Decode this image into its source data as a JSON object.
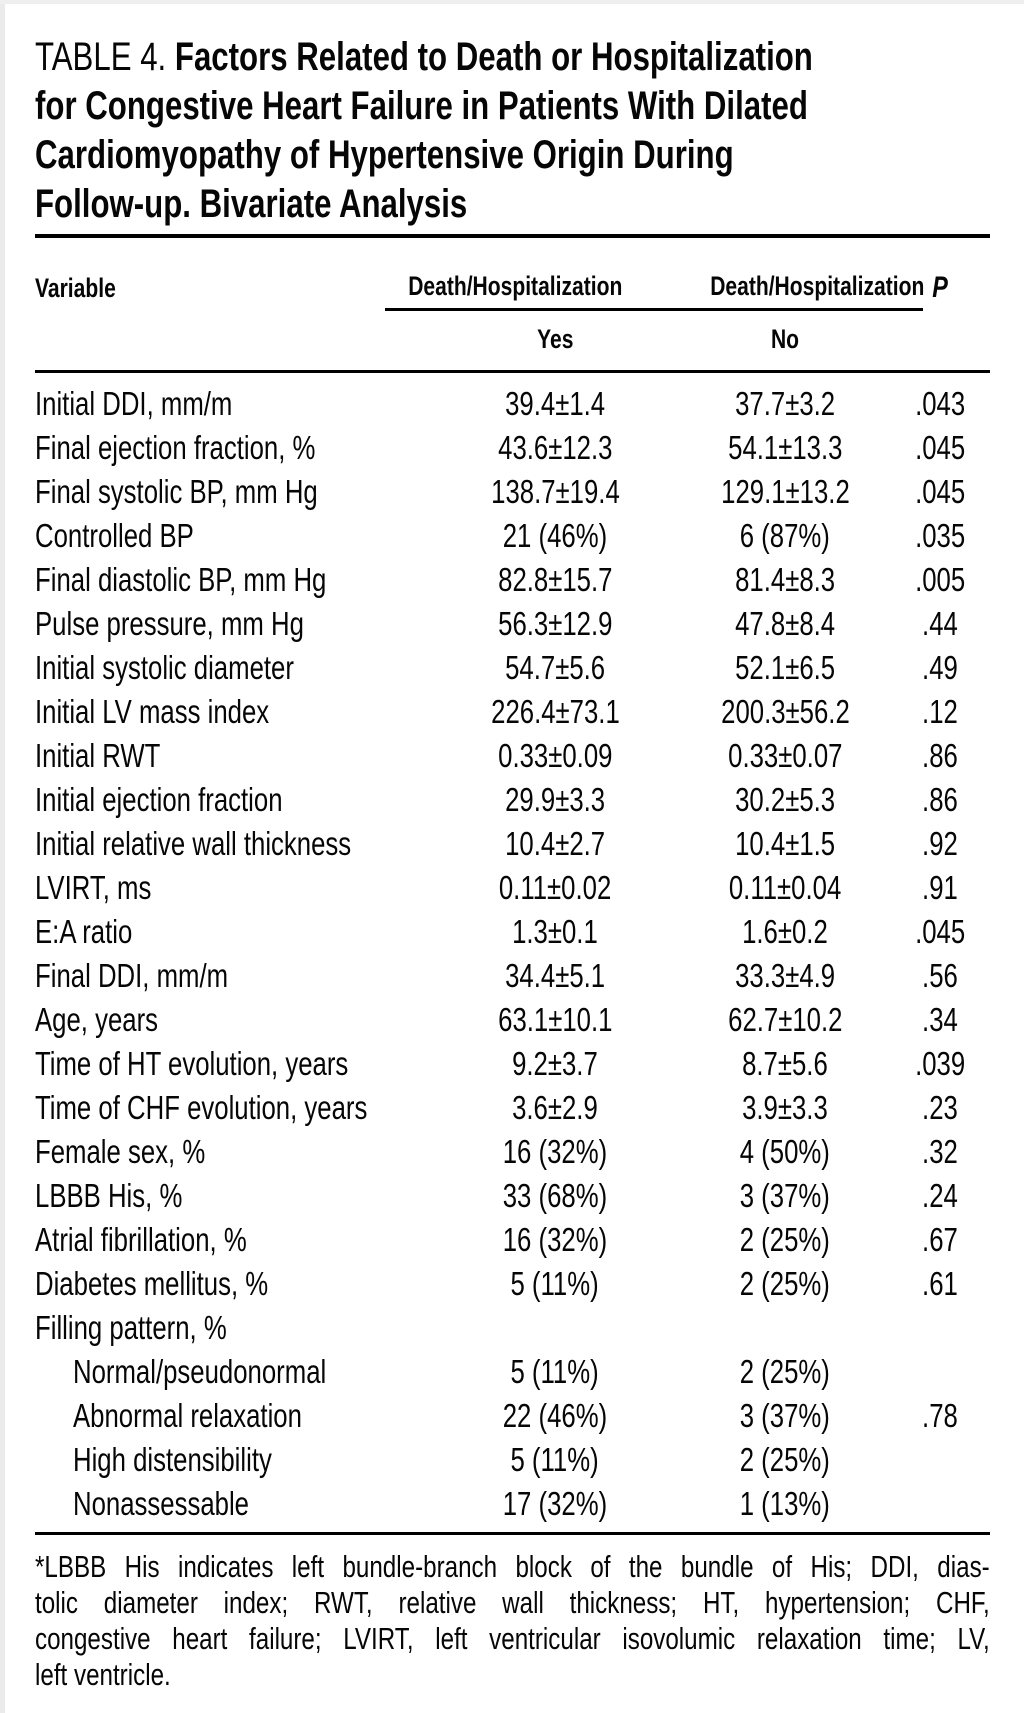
{
  "page": {
    "background": "#ffffff",
    "text_color": "#060606",
    "rule_color": "#000000"
  },
  "title": {
    "prefix": "TABLE 4.",
    "lines": [
      "Factors Related to Death or Hospitalization",
      "for Congestive Heart Failure in Patients With Dilated",
      "Cardiomyopathy of Hypertensive Origin During",
      "Follow-up. Bivariate Analysis"
    ]
  },
  "table": {
    "header": {
      "variable": "Variable",
      "group_yes": "Death/Hospitalization",
      "group_no": "Death/Hospitalization",
      "sub_yes": "Yes",
      "sub_no": "No",
      "p": "P"
    },
    "rows": [
      {
        "variable": "Initial DDI, mm/m",
        "yes": "39.4±1.4",
        "no": "37.7±3.2",
        "p": ".043",
        "indent": false
      },
      {
        "variable": "Final ejection fraction, %",
        "yes": "43.6±12.3",
        "no": "54.1±13.3",
        "p": ".045",
        "indent": false
      },
      {
        "variable": "Final systolic BP, mm Hg",
        "yes": "138.7±19.4",
        "no": "129.1±13.2",
        "p": ".045",
        "indent": false
      },
      {
        "variable": "Controlled BP",
        "yes": "21 (46%)",
        "no": "6 (87%)",
        "p": ".035",
        "indent": false
      },
      {
        "variable": "Final diastolic BP, mm Hg",
        "yes": "82.8±15.7",
        "no": "81.4±8.3",
        "p": ".005",
        "indent": false
      },
      {
        "variable": "Pulse pressure, mm Hg",
        "yes": "56.3±12.9",
        "no": "47.8±8.4",
        "p": ".44",
        "indent": false
      },
      {
        "variable": "Initial systolic diameter",
        "yes": "54.7±5.6",
        "no": "52.1±6.5",
        "p": ".49",
        "indent": false
      },
      {
        "variable": "Initial LV mass index",
        "yes": "226.4±73.1",
        "no": "200.3±56.2",
        "p": ".12",
        "indent": false
      },
      {
        "variable": "Initial RWT",
        "yes": "0.33±0.09",
        "no": "0.33±0.07",
        "p": ".86",
        "indent": false
      },
      {
        "variable": "Initial ejection fraction",
        "yes": "29.9±3.3",
        "no": "30.2±5.3",
        "p": ".86",
        "indent": false
      },
      {
        "variable": "Initial relative wall thickness",
        "yes": "10.4±2.7",
        "no": "10.4±1.5",
        "p": ".92",
        "indent": false
      },
      {
        "variable": "LVIRT, ms",
        "yes": "0.11±0.02",
        "no": "0.11±0.04",
        "p": ".91",
        "indent": false
      },
      {
        "variable": "E:A ratio",
        "yes": "1.3±0.1",
        "no": "1.6±0.2",
        "p": ".045",
        "indent": false
      },
      {
        "variable": "Final DDI, mm/m",
        "yes": "34.4±5.1",
        "no": "33.3±4.9",
        "p": ".56",
        "indent": false
      },
      {
        "variable": "Age, years",
        "yes": "63.1±10.1",
        "no": "62.7±10.2",
        "p": ".34",
        "indent": false
      },
      {
        "variable": "Time of HT evolution, years",
        "yes": "9.2±3.7",
        "no": "8.7±5.6",
        "p": ".039",
        "indent": false
      },
      {
        "variable": "Time of CHF evolution, years",
        "yes": "3.6±2.9",
        "no": "3.9±3.3",
        "p": ".23",
        "indent": false
      },
      {
        "variable": "Female sex, %",
        "yes": "16 (32%)",
        "no": "4 (50%)",
        "p": ".32",
        "indent": false
      },
      {
        "variable": "LBBB His, %",
        "yes": "33 (68%)",
        "no": "3 (37%)",
        "p": ".24",
        "indent": false
      },
      {
        "variable": "Atrial fibrillation, %",
        "yes": "16 (32%)",
        "no": "2 (25%)",
        "p": ".67",
        "indent": false
      },
      {
        "variable": "Diabetes mellitus, %",
        "yes": "5 (11%)",
        "no": "2 (25%)",
        "p": ".61",
        "indent": false
      },
      {
        "variable": "Filling pattern, %",
        "yes": "",
        "no": "",
        "p": "",
        "indent": false
      },
      {
        "variable": "Normal/pseudonormal",
        "yes": "5 (11%)",
        "no": "2 (25%)",
        "p": "",
        "indent": true
      },
      {
        "variable": "Abnormal relaxation",
        "yes": "22 (46%)",
        "no": "3 (37%)",
        "p": ".78",
        "indent": true
      },
      {
        "variable": "High distensibility",
        "yes": "5 (11%)",
        "no": "2 (25%)",
        "p": "",
        "indent": true
      },
      {
        "variable": "Nonassessable",
        "yes": "17 (32%)",
        "no": "1 (13%)",
        "p": "",
        "indent": true
      }
    ]
  },
  "footnote": {
    "lines": [
      "*LBBB His indicates left bundle-branch block of the bundle of His; DDI, dias-",
      "tolic diameter index; RWT, relative wall thickness; HT, hypertension; CHF,",
      "congestive heart failure; LVIRT, left ventricular isovolumic relaxation time; LV,",
      "left ventricle."
    ]
  }
}
